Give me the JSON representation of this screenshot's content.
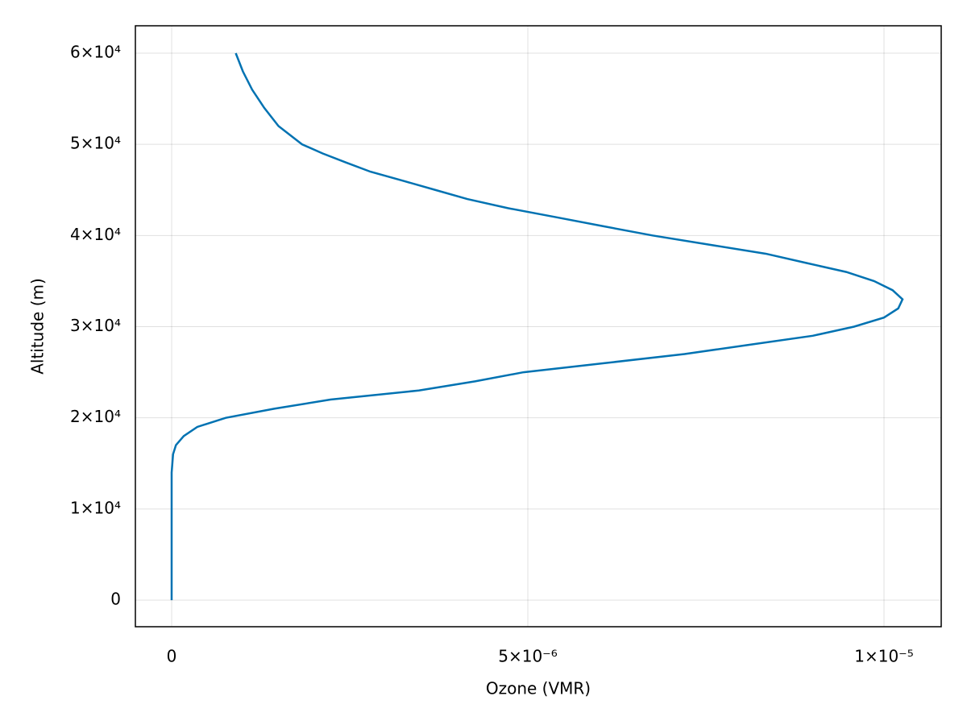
{
  "chart_data": {
    "type": "line",
    "x_label": "Ozone (VMR)",
    "y_label": "Altitude (m)",
    "x": [
      0,
      0,
      0,
      0,
      0,
      0,
      0,
      0,
      1e-08,
      2e-08,
      6e-08,
      1.7e-07,
      3.6e-07,
      7.6e-07,
      1.44e-06,
      2.23e-06,
      3.47e-06,
      4.26e-06,
      4.94e-06,
      6.08e-06,
      7.2e-06,
      8.1e-06,
      9e-06,
      9.58e-06,
      1e-05,
      1.02e-05,
      1.026e-05,
      1.012e-05,
      9.86e-06,
      9.47e-06,
      8.9e-06,
      8.34e-06,
      7.54e-06,
      6.75e-06,
      6.07e-06,
      5.4e-06,
      4.72e-06,
      4.15e-06,
      3.7e-06,
      3.25e-06,
      2.79e-06,
      2.45e-06,
      2.12e-06,
      1.83e-06,
      1.5e-06,
      1.3e-06,
      1.13e-06,
      1e-06,
      9e-07
    ],
    "series": [
      {
        "color": "#0072b2",
        "values": [
          0,
          2000,
          4000,
          6000,
          8000,
          10000,
          12000,
          14000,
          15000,
          16000,
          17000,
          18000,
          19000,
          20000,
          21000,
          22000,
          23000,
          24000,
          25000,
          26000,
          27000,
          28000,
          29000,
          30000,
          31000,
          32000,
          33000,
          34000,
          35000,
          36000,
          37000,
          38000,
          39000,
          40000,
          41000,
          42000,
          43000,
          44000,
          45000,
          46000,
          47000,
          48000,
          49000,
          50000,
          52000,
          54000,
          56000,
          58000,
          60000
        ]
      }
    ],
    "xlim": [
      -5.09e-07,
      1.0803e-05
    ],
    "ylim": [
      -2916,
      63004
    ],
    "xticks": [
      0,
      {
        "value": 5e-06,
        "label": "5×10⁻⁶"
      },
      {
        "value": 1e-05,
        "label": "1×10⁻⁵"
      }
    ],
    "yticks": [
      0,
      {
        "value": 10000,
        "label": "1×10⁴"
      },
      {
        "value": 20000,
        "label": "2×10⁴"
      },
      {
        "value": 30000,
        "label": "3×10⁴"
      },
      {
        "value": 40000,
        "label": "4×10⁴"
      },
      {
        "value": 50000,
        "label": "5×10⁴"
      },
      {
        "value": 60000,
        "label": "6×10⁴"
      }
    ],
    "grid": true
  }
}
